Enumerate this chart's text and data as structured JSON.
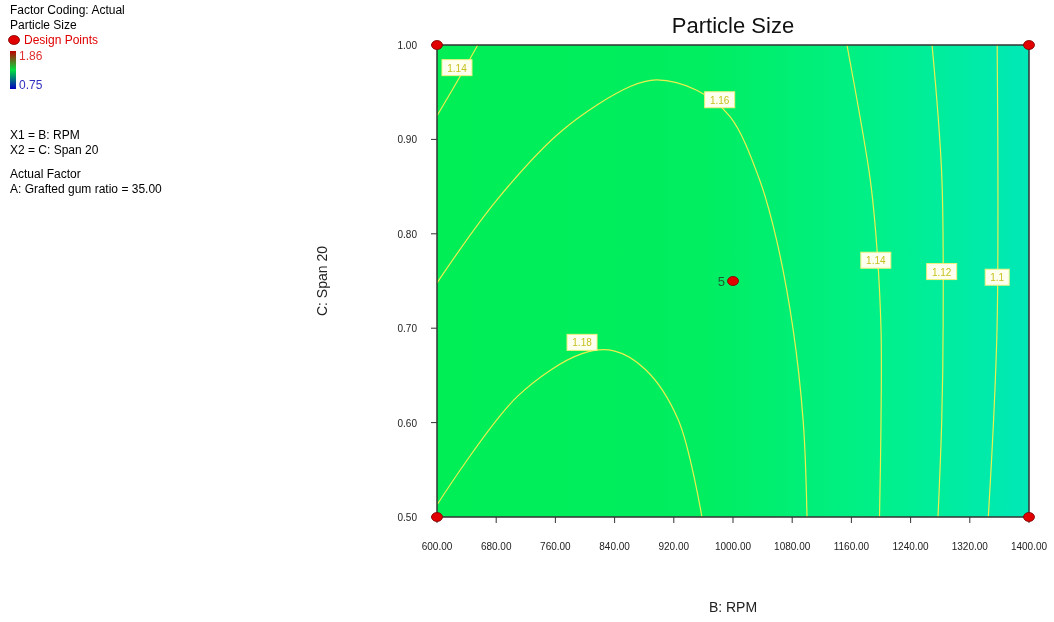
{
  "chart_data": {
    "type": "line",
    "title": "Particle Size",
    "xlabel": "B: RPM",
    "ylabel": "C: Span 20",
    "xlim": [
      600,
      1400
    ],
    "ylim": [
      0.5,
      1.0
    ],
    "xticks": [
      {
        "value": 600,
        "label": "600.00"
      },
      {
        "value": 680,
        "label": "680.00"
      },
      {
        "value": 760,
        "label": "760.00"
      },
      {
        "value": 840,
        "label": "840.00"
      },
      {
        "value": 920,
        "label": "920.00"
      },
      {
        "value": 1000,
        "label": "1000.00"
      },
      {
        "value": 1080,
        "label": "1080.00"
      },
      {
        "value": 1160,
        "label": "1160.00"
      },
      {
        "value": 1240,
        "label": "1240.00"
      },
      {
        "value": 1320,
        "label": "1320.00"
      },
      {
        "value": 1400,
        "label": "1400.00"
      }
    ],
    "yticks": [
      {
        "value": 0.5,
        "label": "0.50"
      },
      {
        "value": 0.6,
        "label": "0.60"
      },
      {
        "value": 0.7,
        "label": "0.70"
      },
      {
        "value": 0.8,
        "label": "0.80"
      },
      {
        "value": 0.9,
        "label": "0.90"
      },
      {
        "value": 1.0,
        "label": "1.00"
      }
    ],
    "grid": false,
    "legend": "left",
    "clim": [
      0.75,
      1.86
    ],
    "cticks": [
      0.75,
      1.86
    ],
    "series": [
      {
        "color": "#e8f050",
        "x": [
          600,
          630,
          655
        ],
        "values": [
          0.925,
          0.965,
          1.0
        ]
      },
      {
        "color": "#e8f050",
        "x": [
          600,
          681,
          770,
          861,
          897,
          951,
          996,
          1036,
          1059,
          1081,
          1095,
          1100
        ],
        "values": [
          0.748,
          0.836,
          0.91,
          0.956,
          0.963,
          0.952,
          0.924,
          0.857,
          0.793,
          0.7,
          0.6,
          0.5
        ]
      },
      {
        "color": "#e8f050",
        "x": [
          601,
          709,
          796,
          839,
          882,
          926,
          958
        ],
        "values": [
          0.514,
          0.628,
          0.673,
          0.676,
          0.656,
          0.603,
          0.5
        ]
      },
      {
        "color": "#e8f050",
        "x": [
          1154,
          1185,
          1193,
          1200,
          1200,
          1198
        ],
        "values": [
          1.0,
          0.86,
          0.8,
          0.7,
          0.6,
          0.5
        ]
      },
      {
        "color": "#e8f050",
        "x": [
          1269,
          1282,
          1284,
          1282,
          1277
        ],
        "values": [
          1.0,
          0.864,
          0.706,
          0.6,
          0.5
        ]
      },
      {
        "color": "#e8f050",
        "x": [
          1357,
          1358,
          1357,
          1352,
          1345
        ],
        "values": [
          1.0,
          0.864,
          0.706,
          0.6,
          0.5
        ]
      },
      {
        "type": "scatter",
        "name": "Design Points",
        "color": "#e00000",
        "marker": "circle",
        "x": [
          600,
          600,
          1400,
          1400,
          1000
        ],
        "values": [
          0.5,
          1.0,
          0.5,
          1.0,
          0.75
        ]
      }
    ],
    "annotations": [
      {
        "text": "1.14",
        "x": 627,
        "y": 0.976
      },
      {
        "text": "1.16",
        "x": 982,
        "y": 0.942
      },
      {
        "text": "1.18",
        "x": 796,
        "y": 0.685
      },
      {
        "text": "1.14",
        "x": 1193,
        "y": 0.772
      },
      {
        "text": "1.12",
        "x": 1282,
        "y": 0.76
      },
      {
        "text": "1.1",
        "x": 1357,
        "y": 0.754
      },
      {
        "text": "5",
        "x": 1000,
        "y": 0.75
      },
      "Factor Coding: Actual",
      "Particle Size",
      "X1 = B: RPM",
      "X2 = C: Span 20",
      "Actual Factor",
      "A: Grafted gum ratio = 35.00"
    ]
  }
}
